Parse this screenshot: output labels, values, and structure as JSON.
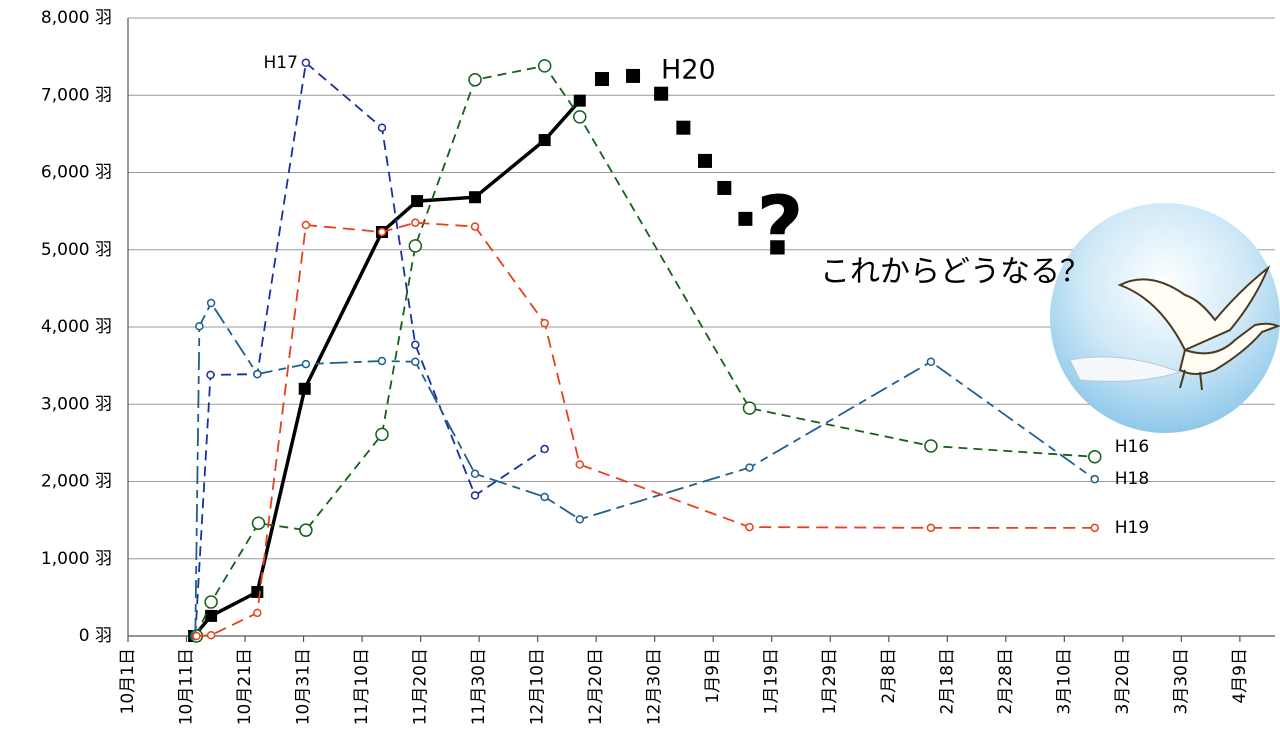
{
  "chart_data": {
    "type": "line",
    "xlim": [
      0,
      196
    ],
    "ylim": [
      0,
      8000
    ],
    "yticks": [
      {
        "value": 0,
        "label": "0 羽"
      },
      {
        "value": 1000,
        "label": "1,000 羽"
      },
      {
        "value": 2000,
        "label": "2,000 羽"
      },
      {
        "value": 3000,
        "label": "3,000 羽"
      },
      {
        "value": 4000,
        "label": "4,000 羽"
      },
      {
        "value": 5000,
        "label": "5,000 羽"
      },
      {
        "value": 6000,
        "label": "6,000 羽"
      },
      {
        "value": 7000,
        "label": "7,000 羽"
      },
      {
        "value": 8000,
        "label": "8,000 羽"
      }
    ],
    "xticks": [
      {
        "value": 0,
        "label": "10月1日"
      },
      {
        "value": 10,
        "label": "10月11日"
      },
      {
        "value": 20,
        "label": "10月21日"
      },
      {
        "value": 30,
        "label": "10月31日"
      },
      {
        "value": 40,
        "label": "11月10日"
      },
      {
        "value": 50,
        "label": "11月20日"
      },
      {
        "value": 60,
        "label": "11月30日"
      },
      {
        "value": 70,
        "label": "12月10日"
      },
      {
        "value": 80,
        "label": "12月20日"
      },
      {
        "value": 90,
        "label": "12月30日"
      },
      {
        "value": 100,
        "label": "1月9日"
      },
      {
        "value": 110,
        "label": "1月19日"
      },
      {
        "value": 120,
        "label": "1月29日"
      },
      {
        "value": 130,
        "label": "2月8日"
      },
      {
        "value": 140,
        "label": "2月18日"
      },
      {
        "value": 150,
        "label": "2月28日"
      },
      {
        "value": 160,
        "label": "3月10日"
      },
      {
        "value": 170,
        "label": "3月20日"
      },
      {
        "value": 180,
        "label": "3月30日"
      },
      {
        "value": 190,
        "label": "4月9日"
      }
    ],
    "grid": true,
    "series": [
      {
        "name": "H20",
        "color": "#000000",
        "x": [
          11.3,
          14.2,
          22.1,
          30.2,
          43.4,
          49.4,
          59.3,
          71.2,
          77.2
        ],
        "values": [
          0,
          260,
          570,
          3200,
          5230,
          5630,
          5680,
          6420,
          6930
        ],
        "projection": {
          "x": [
            81,
            86.3,
            91.1,
            94.9,
            98.6,
            101.9,
            105.5
          ],
          "values": [
            7210,
            7250,
            7020,
            6580,
            6150,
            5800,
            5400
          ]
        }
      },
      {
        "name": "H17",
        "color": "#1a2fa0",
        "x": [
          11.5,
          14.1,
          22.1,
          30.4,
          43.4,
          49.1,
          59.3,
          71.2
        ],
        "values": [
          0,
          3380,
          3390,
          7420,
          6580,
          3770,
          1820,
          2420
        ]
      },
      {
        "name": "H16",
        "color": "#15601a",
        "x": [
          11.7,
          14.2,
          22.3,
          30.4,
          43.4,
          49.1,
          59.3,
          71.2,
          77.2,
          106.2,
          137.2,
          165.2
        ],
        "values": [
          0,
          440,
          1460,
          1370,
          2610,
          5050,
          7200,
          7380,
          6720,
          2950,
          2460,
          2320
        ]
      },
      {
        "name": "H18",
        "color": "#1f5f8f",
        "x": [
          11.5,
          12.2,
          14.2,
          22.1,
          30.4,
          43.4,
          49.1,
          59.3,
          71.2,
          77.2,
          106.2,
          137.2,
          165.2
        ],
        "values": [
          0,
          4010,
          4310,
          3390,
          3520,
          3560,
          3550,
          2100,
          1800,
          1510,
          2180,
          3550,
          2030
        ]
      },
      {
        "name": "H19",
        "color": "#e8401c",
        "x": [
          11.7,
          14.2,
          22.1,
          30.4,
          43.4,
          49.1,
          59.3,
          71.2,
          77.2,
          106.2,
          137.2,
          165.2
        ],
        "values": [
          0,
          10,
          300,
          5320,
          5230,
          5350,
          5300,
          4050,
          2220,
          1410,
          1400,
          1400
        ]
      }
    ],
    "annotations": {
      "question": "?",
      "caption": "これからどうなる？"
    }
  }
}
